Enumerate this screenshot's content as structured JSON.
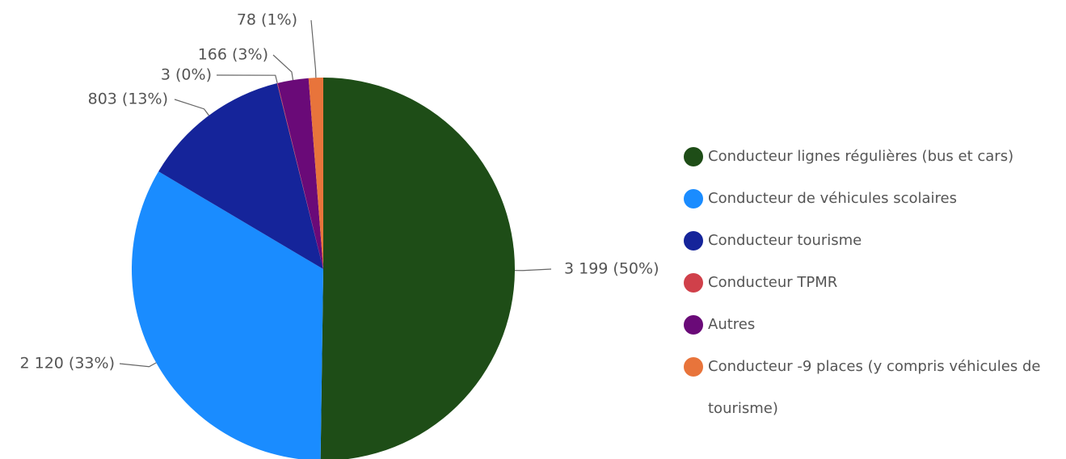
{
  "chart_data": {
    "type": "pie",
    "categories": [
      "Conducteur lignes régulières (bus et cars)",
      "Conducteur  de  véhicules  scolaires",
      "Conducteur tourisme",
      "Conducteur TPMR",
      "Autres",
      "Conducteur -9 places (y compris véhicules de tourisme)"
    ],
    "values": [
      3199,
      2120,
      803,
      3,
      166,
      78
    ],
    "value_labels": [
      "3 199 (50%)",
      "2 120 (33%)",
      "803 (13%)",
      "3 (0%)",
      "166 (3%)",
      "78 (1%)"
    ],
    "colors": [
      "#1e4d17",
      "#1a8cff",
      "#15249a",
      "#d0404a",
      "#6a0a78",
      "#e8743b"
    ],
    "legend": "right"
  }
}
